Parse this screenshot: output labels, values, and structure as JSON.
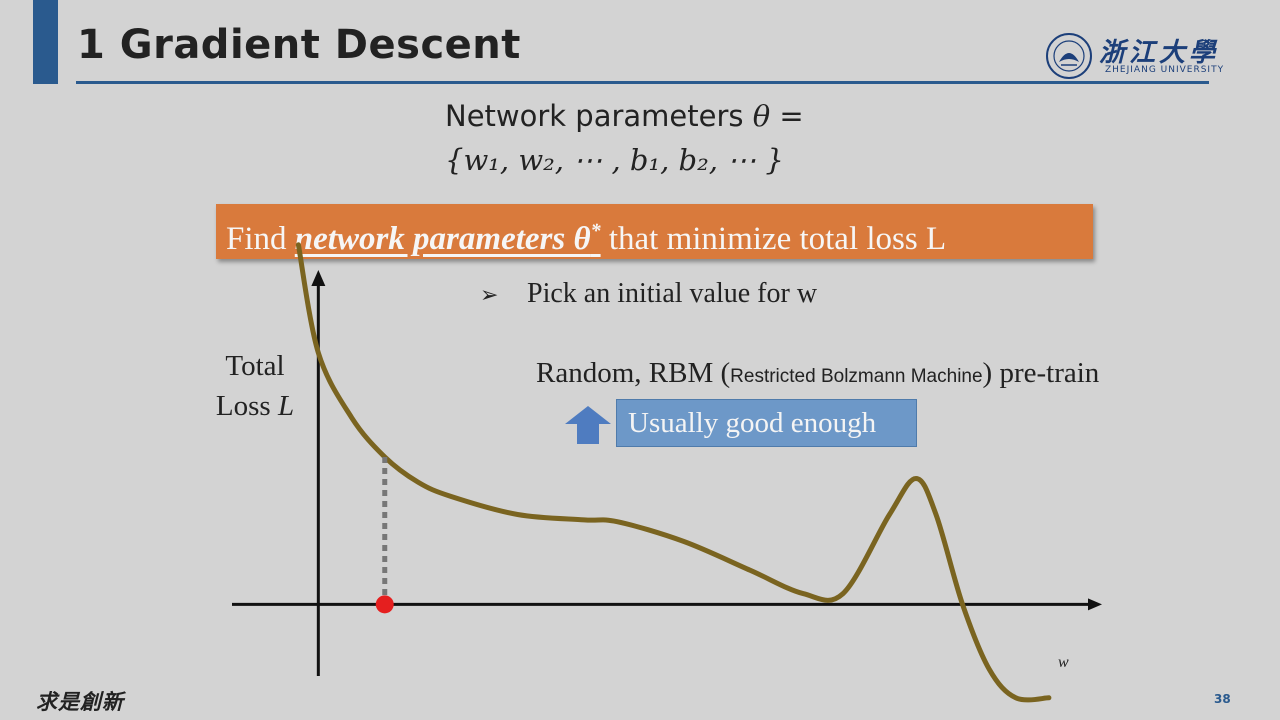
{
  "slide": {
    "title": "1 Gradient Descent",
    "page_number": "38",
    "footer_motto": "求是創新",
    "logo": {
      "chinese_name": "浙江大學",
      "english_name": "ZHEJIANG UNIVERSITY"
    }
  },
  "params": {
    "lead": "Network parameters",
    "symbol": "θ",
    "equals": "=",
    "set": "{w₁, w₂, ⋯ , b₁, b₂, ⋯ }"
  },
  "goal": {
    "prefix": "Find",
    "emphasis": "network parameters θ",
    "superscript": "*",
    "suffix": "that minimize total loss L"
  },
  "bullet": {
    "marker": "➢",
    "text": "Pick an initial value for w"
  },
  "init_methods": {
    "prefix": "Random, RBM (",
    "small": "Restricted Bolzmann Machine",
    "suffix": ") pre-train"
  },
  "callout": {
    "text": "Usually good enough",
    "arrow_icon": "up-arrow-icon"
  },
  "chart_data": {
    "type": "line",
    "title": "",
    "ylabel_line1": "Total",
    "ylabel_line2": "Loss",
    "ylabel_symbol": "L",
    "xlabel": "w",
    "grid": false,
    "series": [
      {
        "color": "#7a6420",
        "x": [
          -0.3,
          0.0,
          0.5,
          1.0,
          1.5,
          2.0,
          3.0,
          4.0,
          4.5,
          5.5,
          6.5,
          7.3,
          7.9,
          8.6,
          9.0,
          9.3,
          9.7,
          10.1,
          10.5,
          11.0
        ],
        "y": [
          10.0,
          7.0,
          5.2,
          4.1,
          3.4,
          3.0,
          2.5,
          2.35,
          2.3,
          1.75,
          0.95,
          0.3,
          0.3,
          2.5,
          3.5,
          2.5,
          0.0,
          -1.8,
          -2.6,
          -2.6
        ]
      }
    ],
    "initial_point": {
      "x": 1.0,
      "y": 0,
      "curve_y": 4.1,
      "color": "#e51f1f"
    },
    "xlim": [
      -1.3,
      11.8
    ],
    "ylim": [
      -2.8,
      9.3
    ]
  }
}
